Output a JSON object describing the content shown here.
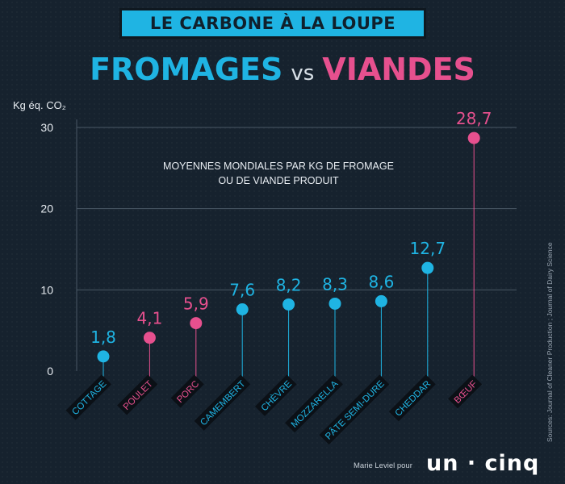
{
  "banner": "LE CARBONE À LA LOUPE",
  "headline": {
    "left": "FROMAGES",
    "vs": "vs",
    "right": "VIANDES"
  },
  "subtitle": [
    "MOYENNES MONDIALES PAR KG DE FROMAGE",
    "OU DE VIANDE PRODUIT"
  ],
  "source": "Sources: Journal of Cleaner Production ; Journal of Dairy Science",
  "credit": "Marie Leviel pour",
  "logo": "un · cinq",
  "colors": {
    "fromage": "#1fb4e3",
    "viande": "#e6508e"
  },
  "chart_data": {
    "type": "scatter",
    "ylabel": "Kg éq. CO₂",
    "ylim": [
      0,
      30
    ],
    "yticks": [
      "0",
      "10",
      "20",
      "30"
    ],
    "grid": true,
    "categories": [
      "COTTAGE",
      "POULET",
      "PORC",
      "CAMEMBERT",
      "CHÈVRE",
      "MOZZARELLA",
      "PÂTE SEMI-DURE",
      "CHEDDAR",
      "BŒUF"
    ],
    "values": [
      1.8,
      4.1,
      5.9,
      7.6,
      8.2,
      8.3,
      8.6,
      12.7,
      28.7
    ],
    "value_labels": [
      "1,8",
      "4,1",
      "5,9",
      "7,6",
      "8,2",
      "8,3",
      "8,6",
      "12,7",
      "28,7"
    ],
    "groups": [
      "fromage",
      "viande",
      "viande",
      "fromage",
      "fromage",
      "fromage",
      "fromage",
      "fromage",
      "viande"
    ]
  }
}
